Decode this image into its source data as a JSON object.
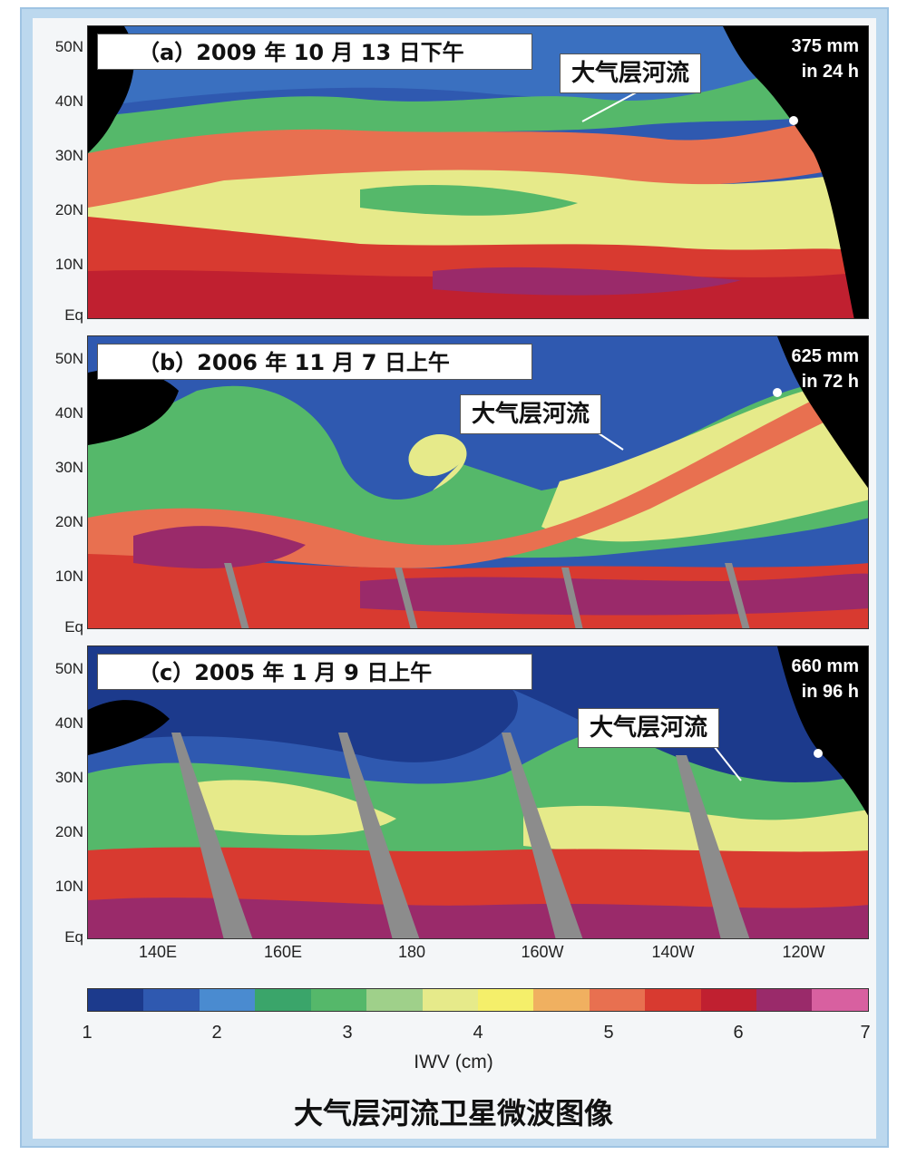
{
  "panels": [
    {
      "title": "（a）2009 年 10 月 13 日下午",
      "rain_amount": "375 mm",
      "rain_period": "in 24 h",
      "ar_label": "大气层河流"
    },
    {
      "title": "（b）2006 年 11 月 7 日上午",
      "rain_amount": "625 mm",
      "rain_period": "in 72 h",
      "ar_label": "大气层河流"
    },
    {
      "title": "（c）2005 年 1 月 9 日上午",
      "rain_amount": "660 mm",
      "rain_period": "in 96 h",
      "ar_label": "大气层河流"
    }
  ],
  "y_axis_labels": [
    "50N",
    "40N",
    "30N",
    "20N",
    "10N",
    "Eq"
  ],
  "x_axis_labels": [
    "140E",
    "160E",
    "180",
    "160W",
    "140W",
    "120W"
  ],
  "colorbar": {
    "ticks": [
      "1",
      "2",
      "3",
      "4",
      "5",
      "6",
      "7"
    ],
    "unit_label": "IWV (cm)",
    "colors": [
      "#1c3a8c",
      "#2f59b0",
      "#4a8bd0",
      "#3aa56a",
      "#55b86a",
      "#9fd08a",
      "#e6ea8a",
      "#f5ef6a",
      "#f0b060",
      "#e87050",
      "#d83a30",
      "#c02030",
      "#9a2a6a",
      "#d860a0"
    ]
  },
  "caption": "大气层河流卫星微波图像"
}
